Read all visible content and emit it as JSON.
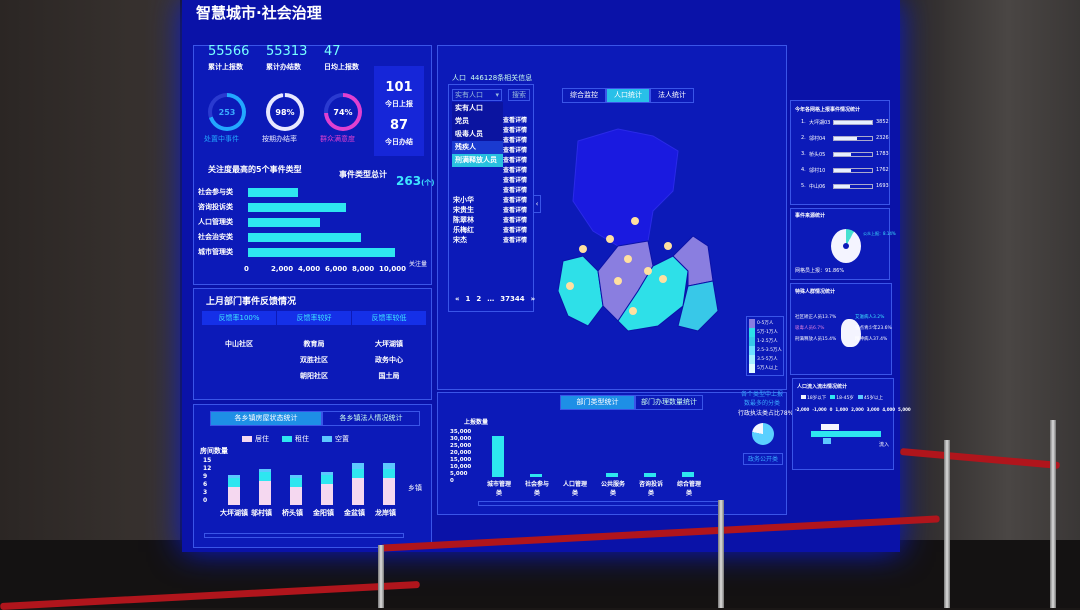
{
  "title": "智慧城市·社会治理",
  "kpis": [
    {
      "value": "55566",
      "label": "累计上报数"
    },
    {
      "value": "55313",
      "label": "累计办结数"
    },
    {
      "value": "47",
      "label": "日均上报数"
    }
  ],
  "today": {
    "report_value": "101",
    "report_label": "今日上报",
    "done_value": "87",
    "done_label": "今日办结"
  },
  "gauges": [
    {
      "value": "253",
      "label": "处置中事件",
      "color": "#22a8ff",
      "fraction": 0.7
    },
    {
      "value": "98%",
      "label": "按期办结率",
      "color": "#e8e8ff",
      "fraction": 0.98
    },
    {
      "value": "74%",
      "label": "群众满意度",
      "color": "#e040d0",
      "fraction": 0.74
    }
  ],
  "top5": {
    "title": "关注度最高的5个事件类型",
    "total_label": "事件类型总计",
    "total_value": "263",
    "total_unit": "(个)",
    "axis_label": "关注量"
  },
  "chart_data": [
    {
      "type": "bar",
      "orientation": "horizontal",
      "categories": [
        "社会参与类",
        "咨询投诉类",
        "人口管理类",
        "社会治安类",
        "城市管理类"
      ],
      "values": [
        3300,
        6500,
        4800,
        7500,
        9800
      ],
      "xlim": [
        0,
        10000
      ],
      "ticks": [
        "0",
        "2,000",
        "4,000",
        "6,000",
        "8,000",
        "10,000"
      ],
      "xlabel": "关注量",
      "color": "#2ee6f0"
    },
    {
      "type": "bar",
      "stacked": true,
      "categories": [
        "大坪湖镇",
        "邬村镇",
        "桥头镇",
        "金阳镇",
        "金盆镇",
        "龙岸镇"
      ],
      "series": [
        {
          "name": "居住",
          "values": [
            6,
            8,
            6,
            7,
            9,
            9
          ],
          "color": "#f5d8f0"
        },
        {
          "name": "租住",
          "values": [
            3,
            3,
            3,
            3,
            3,
            3
          ],
          "color": "#2ee6f0"
        },
        {
          "name": "空置",
          "values": [
            1,
            1,
            1,
            1,
            2,
            2
          ],
          "color": "#5cc8ff"
        }
      ],
      "ylim": [
        0,
        15
      ],
      "ticks": [
        "15",
        "12",
        "9",
        "6",
        "3",
        "0"
      ],
      "ylabel": "房间数量",
      "xlabel": "乡镇"
    },
    {
      "type": "bar",
      "categories": [
        "城市管理类",
        "社会参与类",
        "人口管理类",
        "公共服务类",
        "咨询投诉类",
        "综合管理类"
      ],
      "values": [
        32000,
        2500,
        0,
        3000,
        3500,
        4000
      ],
      "ylim": [
        0,
        35000
      ],
      "ticks": [
        "35,000",
        "30,000",
        "25,000",
        "20,000",
        "15,000",
        "10,000",
        "5,000",
        "0"
      ],
      "ylabel": "上报数量",
      "color": "#2ee6f0"
    }
  ],
  "feedback": {
    "title": "上月部门事件反馈情况",
    "columns": [
      {
        "header": "反馈率100%",
        "items": [
          "中山社区"
        ]
      },
      {
        "header": "反馈率较好",
        "items": [
          "教育局",
          "双胜社区",
          "朝阳社区"
        ]
      },
      {
        "header": "反馈率较低",
        "items": [
          "大坪湖镇",
          "政务中心",
          "国土局"
        ]
      }
    ]
  },
  "housing": {
    "tabs": [
      "各乡镇房屋状态统计",
      "各乡镇法人情况统计"
    ]
  },
  "population": {
    "header": "人口",
    "count_text": "446128条相关信息",
    "select_value": "实有人口",
    "search_label": "搜索",
    "options": [
      "实有人口",
      "党员",
      "吸毒人员",
      "残疾人",
      "刑满释放人员"
    ],
    "names": [
      "宋小华",
      "宋贵生",
      "陈翠林",
      "乐梅红",
      "宋杰"
    ],
    "detail_label": "查看详情",
    "pages": [
      "«",
      "1",
      "2",
      "…",
      "37344",
      "»"
    ]
  },
  "map": {
    "tabs": [
      "综合监控",
      "人口统计",
      "法人统计"
    ],
    "legend": [
      "0-5万人",
      "5万-1万人",
      "1-2.5万人",
      "2.5-3.5万人",
      "3.5-5万人",
      "5万人以上"
    ],
    "colors": [
      "#1a1ae0",
      "#8a7ee0",
      "#2ee0e8",
      "#38c8e8"
    ]
  },
  "dept": {
    "tabs": [
      "部门类型统计",
      "部门办理数量统计"
    ],
    "side_title": "各个类型中上报数最多的分类",
    "side_value": "行政执法类占比78%",
    "side_button": "政务公开类"
  },
  "grid_rank": {
    "title": "今年各网格上报事件情况统计",
    "items": [
      {
        "rank": "1.",
        "name": "大坪湖03",
        "value": "3852",
        "fraction": 1
      },
      {
        "rank": "2.",
        "name": "邬村04",
        "value": "2326",
        "fraction": 0.6
      },
      {
        "rank": "3.",
        "name": "桥头05",
        "value": "1783",
        "fraction": 0.46
      },
      {
        "rank": "4.",
        "name": "邬村10",
        "value": "1762",
        "fraction": 0.45
      },
      {
        "rank": "5.",
        "name": "中山06",
        "value": "1693",
        "fraction": 0.43
      }
    ]
  },
  "source": {
    "title": "事件来源统计",
    "main_label": "网格员上报：91.86%",
    "other_label": "公众上报：8.14%"
  },
  "special": {
    "title": "特殊人群情况统计",
    "labels": [
      "社区矫正人员13.7%",
      "吸毒人员6.7%",
      "刑满释放人员15.4%",
      "艾滋病人3.2%",
      "重点青少年23.6%",
      "精神病人37.4%"
    ]
  },
  "flow": {
    "title": "人口流入流出情况统计",
    "legend": [
      "18岁以下",
      "18-45岁",
      "45岁以上"
    ],
    "ticks": [
      "-2,000",
      "-1,000",
      "0",
      "1,000",
      "2,000",
      "3,000",
      "4,000",
      "5,000"
    ],
    "in_label": "流入"
  }
}
